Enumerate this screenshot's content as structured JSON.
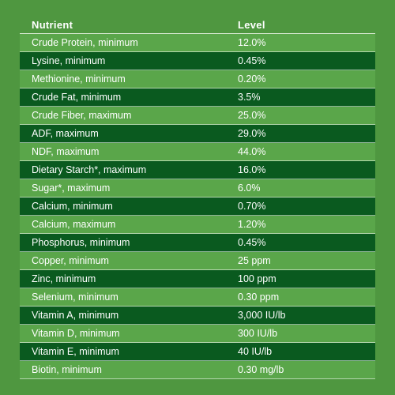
{
  "table": {
    "header": {
      "nutrient": "Nutrient",
      "level": "Level"
    },
    "rows": [
      {
        "nutrient": "Crude Protein, minimum",
        "level": "12.0%"
      },
      {
        "nutrient": "Lysine, minimum",
        "level": "0.45%"
      },
      {
        "nutrient": "Methionine, minimum",
        "level": "0.20%"
      },
      {
        "nutrient": "Crude Fat, minimum",
        "level": "3.5%"
      },
      {
        "nutrient": "Crude Fiber, maximum",
        "level": "25.0%"
      },
      {
        "nutrient": "ADF, maximum",
        "level": "29.0%"
      },
      {
        "nutrient": "NDF, maximum",
        "level": "44.0%"
      },
      {
        "nutrient": "Dietary Starch*, maximum",
        "level": "16.0%"
      },
      {
        "nutrient": "Sugar*, maximum",
        "level": "6.0%"
      },
      {
        "nutrient": "Calcium, minimum",
        "level": "0.70%"
      },
      {
        "nutrient": "Calcium, maximum",
        "level": "1.20%"
      },
      {
        "nutrient": "Phosphorus, minimum",
        "level": "0.45%"
      },
      {
        "nutrient": "Copper, minimum",
        "level": "25 ppm"
      },
      {
        "nutrient": "Zinc, minimum",
        "level": "100 ppm"
      },
      {
        "nutrient": "Selenium, minimum",
        "level": "0.30 ppm"
      },
      {
        "nutrient": "Vitamin A, minimum",
        "level": "3,000 IU/lb"
      },
      {
        "nutrient": "Vitamin D, minimum",
        "level": "300 IU/lb"
      },
      {
        "nutrient": "Vitamin E, minimum",
        "level": "40 IU/lb"
      },
      {
        "nutrient": "Biotin, minimum",
        "level": "0.30 mg/lb"
      }
    ]
  },
  "colors": {
    "background": "#4f9740",
    "row_light": "#5aa64a",
    "row_dark": "#0a5a1f",
    "text": "#ffffff"
  }
}
